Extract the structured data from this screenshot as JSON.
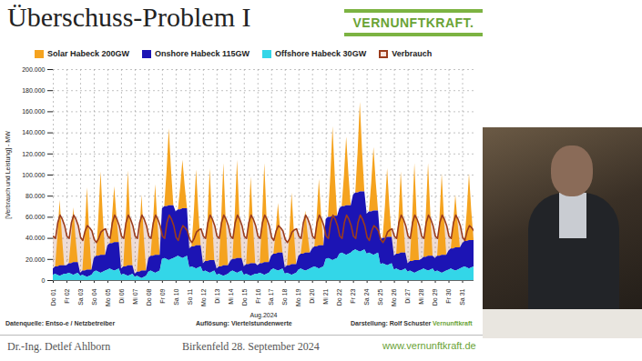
{
  "chart_data": {
    "type": "area",
    "title": "Überschuss-Problem I",
    "stacked": true,
    "grid": true,
    "legend": "top",
    "xlabel": "Aug.2024",
    "ylabel": "[Verbrauch und Leistung] - MW",
    "ylim": [
      0,
      200000
    ],
    "yticks": [
      0,
      {
        "value": 20000,
        "label": "20.000"
      },
      {
        "value": 40000,
        "label": "40.000"
      },
      {
        "value": 60000,
        "label": "60.000"
      },
      {
        "value": 80000,
        "label": "80.000"
      },
      {
        "value": 100000,
        "label": "100.000"
      },
      {
        "value": 120000,
        "label": "120.000"
      },
      {
        "value": 140000,
        "label": "140.000"
      },
      {
        "value": 160000,
        "label": "160.000"
      },
      {
        "value": 180000,
        "label": "180.000"
      },
      {
        "value": 200000,
        "label": "200.000"
      }
    ],
    "source_note": "Datenquelle: Entso-e / Netzbetreiber",
    "resolution_note": "Auflösung: Viertelstundenwerte",
    "credit": "Darstellung: Rolf Schuster",
    "credit_brand": "Vernunftkraft",
    "categories": [
      "Do 01",
      null,
      null,
      null,
      null,
      null,
      "Fr 02",
      null,
      null,
      null,
      null,
      null,
      "Sa 03",
      null,
      null,
      null,
      null,
      null,
      "So 04",
      null,
      null,
      null,
      null,
      null,
      "Mo 05",
      null,
      null,
      null,
      null,
      null,
      "Di 06",
      null,
      null,
      null,
      null,
      null,
      "Mi 07",
      null,
      null,
      null,
      null,
      null,
      "Do 08",
      null,
      null,
      null,
      null,
      null,
      "Fr 09",
      null,
      null,
      null,
      null,
      null,
      "Sa 10",
      null,
      null,
      null,
      null,
      null,
      "So 11",
      null,
      null,
      null,
      null,
      null,
      "Mo 12",
      null,
      null,
      null,
      null,
      null,
      "Di 13",
      null,
      null,
      null,
      null,
      null,
      "Mi 14",
      null,
      null,
      null,
      null,
      null,
      "Do 15",
      null,
      null,
      null,
      null,
      null,
      "Fr 16",
      null,
      null,
      null,
      null,
      null,
      "Sa 17",
      null,
      null,
      null,
      null,
      null,
      "So 18",
      null,
      null,
      null,
      null,
      null,
      "Mo 19",
      null,
      null,
      null,
      null,
      null,
      "Di 20",
      null,
      null,
      null,
      null,
      null,
      "Mi 21",
      null,
      null,
      null,
      null,
      null,
      "Do 22",
      null,
      null,
      null,
      null,
      null,
      "Fr 23",
      null,
      null,
      null,
      null,
      null,
      "Sa 24",
      null,
      null,
      null,
      null,
      null,
      "So 25",
      null,
      null,
      null,
      null,
      null,
      "Mo 26",
      null,
      null,
      null,
      null,
      null,
      "Di 27",
      null,
      null,
      null,
      null,
      null,
      "Mi 28",
      null,
      null,
      null,
      null,
      null,
      "Do 29",
      null,
      null,
      null,
      null,
      null,
      "Fr 30",
      null,
      null,
      null,
      null,
      null,
      "Sa 31",
      null,
      null,
      null,
      null,
      null
    ],
    "series": [
      {
        "name": "Solar Habeck 200GW",
        "color": "#f5a31f",
        "type": "area",
        "values": [
          0,
          0,
          28000,
          62000,
          28000,
          0,
          0,
          0,
          23000,
          52000,
          23000,
          0,
          0,
          0,
          35000,
          78000,
          35000,
          0,
          0,
          0,
          36000,
          79000,
          36000,
          0,
          0,
          0,
          24000,
          53000,
          24000,
          0,
          0,
          0,
          41000,
          90000,
          41000,
          0,
          0,
          0,
          32000,
          72000,
          32000,
          0,
          0,
          0,
          30000,
          67000,
          30000,
          0,
          0,
          0,
          33000,
          73000,
          33000,
          0,
          0,
          0,
          21000,
          46000,
          21000,
          0,
          0,
          0,
          32000,
          72000,
          32000,
          0,
          0,
          0,
          39000,
          87000,
          39000,
          0,
          0,
          0,
          44000,
          97000,
          44000,
          0,
          0,
          0,
          42000,
          93000,
          42000,
          0,
          0,
          0,
          37000,
          82000,
          37000,
          0,
          0,
          0,
          42000,
          94000,
          42000,
          0,
          0,
          0,
          21000,
          47000,
          21000,
          0,
          0,
          0,
          31000,
          68000,
          31000,
          0,
          0,
          0,
          18000,
          40000,
          18000,
          0,
          0,
          0,
          28000,
          63000,
          28000,
          0,
          0,
          0,
          38000,
          85000,
          38000,
          0,
          0,
          0,
          29000,
          65000,
          29000,
          0,
          0,
          0,
          38000,
          85000,
          38000,
          0,
          0,
          0,
          27000,
          60000,
          27000,
          0,
          0,
          0,
          29000,
          65000,
          29000,
          0,
          0,
          0,
          35000,
          77000,
          35000,
          0,
          0,
          0,
          41000,
          92000,
          41000,
          0,
          0,
          0,
          40000,
          88000,
          40000,
          0,
          0,
          0,
          35000,
          77000,
          35000,
          0,
          0,
          0,
          23000,
          50000,
          23000,
          0,
          0,
          0,
          28000,
          63000,
          28000,
          0
        ]
      },
      {
        "name": "Onshore Habeck 115GW",
        "color": "#1c14b4",
        "type": "area",
        "values": [
          6000,
          7000,
          8000,
          10000,
          9000,
          8000,
          8000,
          9000,
          10000,
          12000,
          11000,
          10000,
          3000,
          4000,
          5000,
          7000,
          6000,
          5000,
          13000,
          14000,
          15000,
          17000,
          16000,
          15000,
          23000,
          24000,
          25000,
          27000,
          26000,
          25000,
          6000,
          7000,
          8000,
          10000,
          9000,
          8000,
          3000,
          4000,
          5000,
          7000,
          6000,
          5000,
          13000,
          14000,
          15000,
          17000,
          16000,
          15000,
          48000,
          49000,
          50000,
          52000,
          51000,
          50000,
          43000,
          44000,
          45000,
          47000,
          46000,
          45000,
          18000,
          19000,
          20000,
          22000,
          21000,
          20000,
          8000,
          9000,
          10000,
          12000,
          11000,
          10000,
          6000,
          7000,
          8000,
          10000,
          9000,
          8000,
          10000,
          11000,
          12000,
          14000,
          13000,
          12000,
          8000,
          9000,
          10000,
          12000,
          11000,
          10000,
          8000,
          9000,
          10000,
          12000,
          11000,
          10000,
          13000,
          14000,
          15000,
          17000,
          16000,
          15000,
          6000,
          7000,
          8000,
          10000,
          9000,
          8000,
          13000,
          14000,
          15000,
          17000,
          16000,
          15000,
          18000,
          19000,
          20000,
          22000,
          21000,
          20000,
          38000,
          39000,
          40000,
          42000,
          41000,
          40000,
          43000,
          44000,
          45000,
          47000,
          46000,
          45000,
          53000,
          54000,
          55000,
          57000,
          56000,
          55000,
          38000,
          39000,
          40000,
          42000,
          41000,
          40000,
          23000,
          24000,
          25000,
          27000,
          26000,
          25000,
          13000,
          14000,
          15000,
          17000,
          16000,
          15000,
          8000,
          9000,
          10000,
          12000,
          11000,
          10000,
          10000,
          11000,
          12000,
          14000,
          13000,
          12000,
          13000,
          14000,
          15000,
          17000,
          16000,
          15000,
          18000,
          19000,
          20000,
          22000,
          21000,
          20000,
          23000,
          24000,
          25000,
          27000,
          26000,
          25000
        ]
      },
      {
        "name": "Offshore Habeck 30GW",
        "color": "#33d6e8",
        "type": "area",
        "values": [
          5000,
          6000,
          5000,
          4000,
          5000,
          6000,
          6000,
          7000,
          6000,
          5000,
          6000,
          7000,
          4000,
          5000,
          4000,
          3000,
          4000,
          5000,
          8000,
          9000,
          8000,
          7000,
          8000,
          9000,
          10000,
          11000,
          10000,
          9000,
          10000,
          11000,
          5000,
          6000,
          5000,
          4000,
          5000,
          6000,
          3000,
          4000,
          3000,
          2000,
          3000,
          4000,
          8000,
          9000,
          8000,
          7000,
          8000,
          9000,
          20000,
          21000,
          20000,
          19000,
          20000,
          21000,
          22000,
          23000,
          22000,
          21000,
          22000,
          23000,
          12000,
          13000,
          12000,
          11000,
          12000,
          13000,
          8000,
          9000,
          8000,
          7000,
          8000,
          9000,
          5000,
          6000,
          5000,
          4000,
          5000,
          6000,
          8000,
          9000,
          8000,
          7000,
          8000,
          9000,
          5000,
          6000,
          5000,
          4000,
          5000,
          6000,
          6000,
          7000,
          6000,
          5000,
          6000,
          7000,
          10000,
          11000,
          10000,
          9000,
          10000,
          11000,
          6000,
          7000,
          6000,
          5000,
          6000,
          7000,
          10000,
          11000,
          10000,
          9000,
          10000,
          11000,
          12000,
          13000,
          12000,
          11000,
          12000,
          13000,
          20000,
          21000,
          20000,
          19000,
          20000,
          21000,
          25000,
          26000,
          25000,
          24000,
          25000,
          26000,
          28000,
          29000,
          28000,
          27000,
          28000,
          29000,
          25000,
          26000,
          25000,
          24000,
          25000,
          26000,
          15000,
          16000,
          15000,
          14000,
          15000,
          16000,
          10000,
          11000,
          10000,
          9000,
          10000,
          11000,
          8000,
          9000,
          8000,
          7000,
          8000,
          9000,
          10000,
          11000,
          10000,
          9000,
          10000,
          11000,
          8000,
          9000,
          8000,
          7000,
          8000,
          9000,
          10000,
          11000,
          10000,
          9000,
          10000,
          11000,
          12000,
          13000,
          12000,
          11000,
          12000,
          13000
        ]
      },
      {
        "name": "Verbrauch",
        "color": "#9b3c1c",
        "type": "line",
        "values": [
          42000,
          40000,
          55000,
          62000,
          58000,
          52000,
          42000,
          40000,
          55000,
          62000,
          58000,
          52000,
          41000,
          38000,
          47000,
          52000,
          50000,
          47000,
          39000,
          36000,
          40000,
          46000,
          48000,
          49000,
          42000,
          40000,
          55000,
          62000,
          58000,
          52000,
          42000,
          40000,
          55000,
          62000,
          58000,
          52000,
          42000,
          40000,
          55000,
          62000,
          58000,
          52000,
          42000,
          40000,
          55000,
          62000,
          58000,
          52000,
          42000,
          40000,
          55000,
          62000,
          58000,
          52000,
          41000,
          38000,
          47000,
          52000,
          50000,
          47000,
          39000,
          36000,
          40000,
          46000,
          48000,
          49000,
          42000,
          40000,
          55000,
          62000,
          58000,
          52000,
          42000,
          40000,
          55000,
          62000,
          58000,
          52000,
          42000,
          40000,
          55000,
          62000,
          58000,
          52000,
          42000,
          40000,
          55000,
          62000,
          58000,
          52000,
          42000,
          40000,
          55000,
          62000,
          58000,
          52000,
          41000,
          38000,
          47000,
          52000,
          50000,
          47000,
          39000,
          36000,
          40000,
          46000,
          48000,
          49000,
          42000,
          40000,
          55000,
          62000,
          58000,
          52000,
          42000,
          40000,
          55000,
          62000,
          58000,
          52000,
          42000,
          40000,
          55000,
          62000,
          58000,
          52000,
          42000,
          40000,
          55000,
          62000,
          58000,
          52000,
          42000,
          40000,
          55000,
          62000,
          58000,
          52000,
          41000,
          38000,
          47000,
          52000,
          50000,
          47000,
          39000,
          36000,
          40000,
          46000,
          48000,
          49000,
          42000,
          40000,
          55000,
          62000,
          58000,
          52000,
          42000,
          40000,
          55000,
          62000,
          58000,
          52000,
          42000,
          40000,
          55000,
          62000,
          58000,
          52000,
          42000,
          40000,
          55000,
          62000,
          58000,
          52000,
          42000,
          40000,
          55000,
          62000,
          58000,
          52000,
          41000,
          38000,
          47000,
          52000,
          50000,
          47000
        ]
      }
    ]
  },
  "slide": {
    "logo": "VERNUNFTKRAFT.",
    "footer_left": "Dr.-Ing. Detlef Ahlborn",
    "footer_center": "Birkenfeld 28. September 2024",
    "footer_right": "www.vernunftkraft.de"
  }
}
